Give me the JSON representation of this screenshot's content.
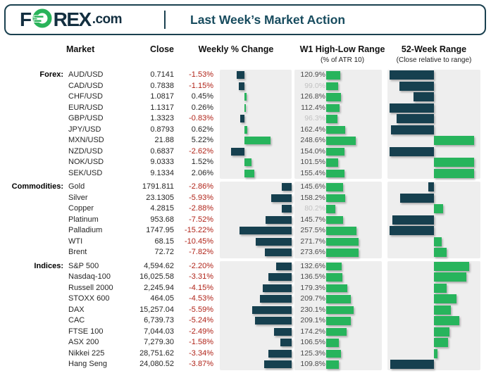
{
  "header": {
    "logo_f": "F",
    "logo_rex": "REX",
    "logo_suffix": ".com",
    "title": "Last Week’s Market Action"
  },
  "columns": {
    "market": "Market",
    "close": "Close",
    "weekly": "Weekly % Change",
    "w1": "W1 High-Low Range",
    "w1_sub": "(% of ATR 10)",
    "w52": "52-Week Range",
    "w52_sub": "(Close relative to range)"
  },
  "colors": {
    "navy_bar": "#16404f",
    "green_bar": "#27b45c",
    "negative_text": "#b02318",
    "panel_bg": "#eeeeee",
    "dim_text": "#c2c2c2",
    "logo_green": "#29b35a",
    "logo_navy": "#132f40",
    "title_navy": "#174b5e"
  },
  "chart_data": {
    "type": "table",
    "title": "Last Week’s Market Action",
    "columns": [
      "Market",
      "Close",
      "Weekly % Change",
      "W1 High-Low Range (% of ATR 10)",
      "52-Week Range (Close relative to range, % est.)"
    ],
    "legend_note": "Dark bars = negative weekly change or close in lower half of 52-week range; green bars = positive / upper half. W1 values under 100% shown dimmed.",
    "groups": [
      {
        "name": "Forex:",
        "weekly_axis": {
          "min": -4.9,
          "max": 9.5
        },
        "rows": [
          {
            "market": "AUD/USD",
            "close": "0.7141",
            "weekly": -1.53,
            "weekly_label": "-1.53%",
            "w1": 120.9,
            "w1_label": "120.9%",
            "w52": 2
          },
          {
            "market": "CAD/USD",
            "close": "0.7838",
            "weekly": -1.15,
            "weekly_label": "-1.15%",
            "w1": 99.0,
            "w1_label": "99.0%",
            "w52": 13
          },
          {
            "market": "CHF/USD",
            "close": "1.0817",
            "weekly": 0.45,
            "weekly_label": "0.45%",
            "w1": 126.8,
            "w1_label": "126.8%",
            "w52": 28
          },
          {
            "market": "EUR/USD",
            "close": "1.1317",
            "weekly": 0.26,
            "weekly_label": "0.26%",
            "w1": 112.4,
            "w1_label": "112.4%",
            "w52": 2
          },
          {
            "market": "GBP/USD",
            "close": "1.3323",
            "weekly": -0.83,
            "weekly_label": "-0.83%",
            "w1": 96.3,
            "w1_label": "96.3%",
            "w52": 10
          },
          {
            "market": "JPY/USD",
            "close": "0.8793",
            "weekly": 0.62,
            "weekly_label": "0.62%",
            "w1": 162.4,
            "w1_label": "162.4%",
            "w52": 4
          },
          {
            "market": "MXN/USD",
            "close": "21.88",
            "weekly": 5.22,
            "weekly_label": "5.22%",
            "w1": 248.6,
            "w1_label": "248.6%",
            "w52": 93
          },
          {
            "market": "NZD/USD",
            "close": "0.6837",
            "weekly": -2.62,
            "weekly_label": "-2.62%",
            "w1": 154.0,
            "w1_label": "154.0%",
            "w52": 2
          },
          {
            "market": "NOK/USD",
            "close": "9.0333",
            "weekly": 1.52,
            "weekly_label": "1.52%",
            "w1": 101.5,
            "w1_label": "101.5%",
            "w52": 93
          },
          {
            "market": "SEK/USD",
            "close": "9.1334",
            "weekly": 2.06,
            "weekly_label": "2.06%",
            "w1": 155.4,
            "w1_label": "155.4%",
            "w52": 93
          }
        ]
      },
      {
        "name": "Commodities:",
        "weekly_axis": {
          "min": -20.9,
          "max": 0
        },
        "rows": [
          {
            "market": "Gold",
            "close": "1791.811",
            "weekly": -2.86,
            "weekly_label": "-2.86%",
            "w1": 145.6,
            "w1_label": "145.6%",
            "w52": 44
          },
          {
            "market": "Silver",
            "close": "23.1305",
            "weekly": -5.93,
            "weekly_label": "-5.93%",
            "w1": 158.2,
            "w1_label": "158.2%",
            "w52": 14
          },
          {
            "market": "Copper",
            "close": "4.2815",
            "weekly": -2.88,
            "weekly_label": "-2.88%",
            "w1": 80.2,
            "w1_label": "80.2%",
            "w52": 60
          },
          {
            "market": "Platinum",
            "close": "953.68",
            "weekly": -7.52,
            "weekly_label": "-7.52%",
            "w1": 145.7,
            "w1_label": "145.7%",
            "w52": 5
          },
          {
            "market": "Palladium",
            "close": "1747.95",
            "weekly": -15.22,
            "weekly_label": "-15.22%",
            "w1": 257.5,
            "w1_label": "257.5%",
            "w52": 2
          },
          {
            "market": "WTI",
            "close": "68.15",
            "weekly": -10.45,
            "weekly_label": "-10.45%",
            "w1": 271.7,
            "w1_label": "271.7%",
            "w52": 58
          },
          {
            "market": "Brent",
            "close": "72.72",
            "weekly": -7.82,
            "weekly_label": "-7.82%",
            "w1": 273.6,
            "w1_label": "273.6%",
            "w52": 64
          }
        ]
      },
      {
        "name": "Indices:",
        "weekly_axis": {
          "min": -10.2,
          "max": 0
        },
        "rows": [
          {
            "market": "S&P 500",
            "close": "4,594.62",
            "weekly": -2.2,
            "weekly_label": "-2.20%",
            "w1": 132.6,
            "w1_label": "132.6%",
            "w52": 88
          },
          {
            "market": "Nasdaq-100",
            "close": "16,025.58",
            "weekly": -3.31,
            "weekly_label": "-3.31%",
            "w1": 136.5,
            "w1_label": "136.5%",
            "w52": 85
          },
          {
            "market": "Russell 2000",
            "close": "2,245.94",
            "weekly": -4.15,
            "weekly_label": "-4.15%",
            "w1": 179.3,
            "w1_label": "179.3%",
            "w52": 64
          },
          {
            "market": "STOXX 600",
            "close": "464.05",
            "weekly": -4.53,
            "weekly_label": "-4.53%",
            "w1": 209.7,
            "w1_label": "209.7%",
            "w52": 74
          },
          {
            "market": "DAX",
            "close": "15,257.04",
            "weekly": -5.59,
            "weekly_label": "-5.59%",
            "w1": 230.1,
            "w1_label": "230.1%",
            "w52": 68
          },
          {
            "market": "CAC",
            "close": "6,739.73",
            "weekly": -5.24,
            "weekly_label": "-5.24%",
            "w1": 209.1,
            "w1_label": "209.1%",
            "w52": 77
          },
          {
            "market": "FTSE 100",
            "close": "7,044.03",
            "weekly": -2.49,
            "weekly_label": "-2.49%",
            "w1": 174.2,
            "w1_label": "174.2%",
            "w52": 67
          },
          {
            "market": "ASX 200",
            "close": "7,279.30",
            "weekly": -1.58,
            "weekly_label": "-1.58%",
            "w1": 106.5,
            "w1_label": "106.5%",
            "w52": 65
          },
          {
            "market": "Nikkei 225",
            "close": "28,751.62",
            "weekly": -3.34,
            "weekly_label": "-3.34%",
            "w1": 125.3,
            "w1_label": "125.3%",
            "w52": 54
          },
          {
            "market": "Hang Seng",
            "close": "24,080.52",
            "weekly": -3.87,
            "weekly_label": "-3.87%",
            "w1": 109.8,
            "w1_label": "109.8%",
            "w52": 3
          }
        ]
      }
    ]
  },
  "layout_tops": {
    "forex": 99,
    "commodities": 258,
    "indices": 370.5
  }
}
